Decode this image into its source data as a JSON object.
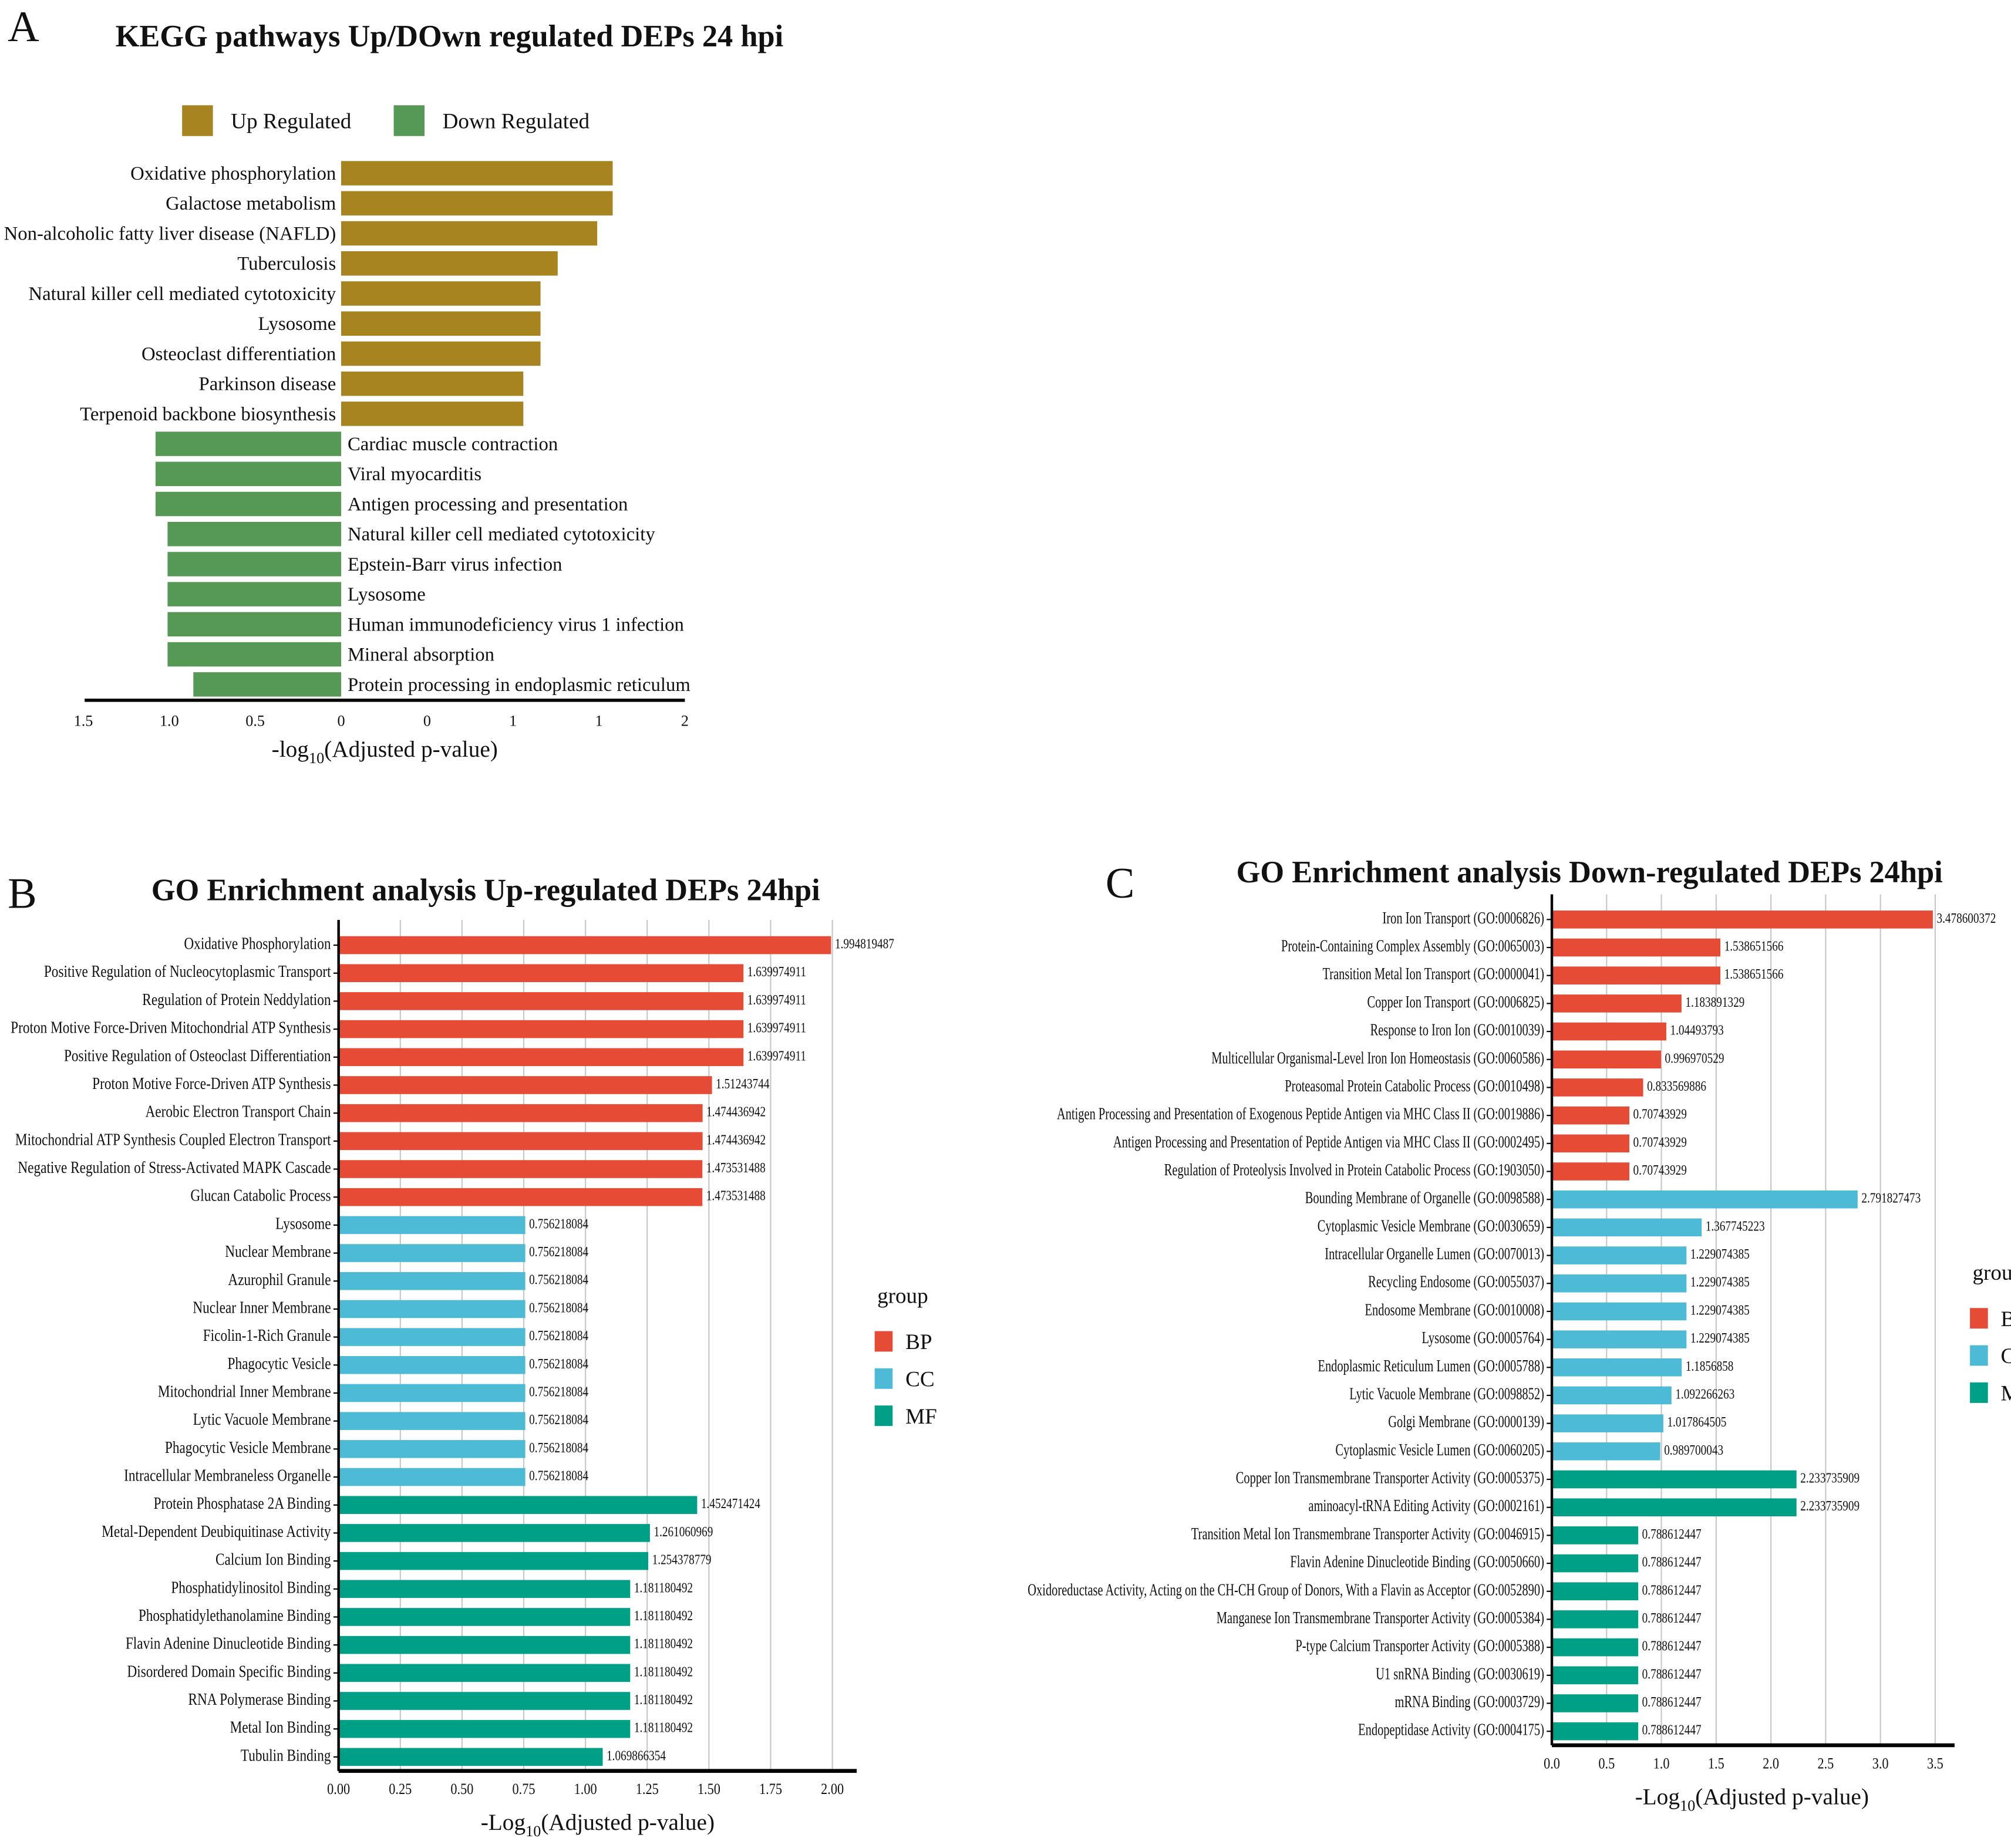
{
  "chart_data": [
    {
      "type": "bar",
      "panel": "A",
      "title": "KEGG pathways Up/DOwn regulated  DEPs  24 hpi",
      "legend": [
        {
          "label": "Up Regulated",
          "color": "#A88420"
        },
        {
          "label": "Down Regulated",
          "color": "#559955"
        }
      ],
      "up": [
        {
          "label": "Oxidative phosphorylation",
          "value": 1.58
        },
        {
          "label": "Galactose metabolism",
          "value": 1.58
        },
        {
          "label": "Non-alcoholic fatty liver disease (NAFLD)",
          "value": 1.49
        },
        {
          "label": "Tuberculosis",
          "value": 1.26
        },
        {
          "label": "Natural killer cell mediated cytotoxicity",
          "value": 1.16
        },
        {
          "label": "Lysosome",
          "value": 1.16
        },
        {
          "label": "Osteoclast differentiation",
          "value": 1.16
        },
        {
          "label": "Parkinson disease",
          "value": 1.06
        },
        {
          "label": "Terpenoid backbone biosynthesis",
          "value": 1.06
        }
      ],
      "down": [
        {
          "label": "Cardiac muscle contraction",
          "value": 1.08
        },
        {
          "label": "Viral myocarditis",
          "value": 1.08
        },
        {
          "label": "Antigen processing and presentation",
          "value": 1.08
        },
        {
          "label": "Natural killer cell mediated cytotoxicity",
          "value": 1.01
        },
        {
          "label": "Epstein-Barr virus infection",
          "value": 1.01
        },
        {
          "label": "Lysosome",
          "value": 1.01
        },
        {
          "label": "Human immunodeficiency virus 1 infection",
          "value": 1.01
        },
        {
          "label": "Mineral absorption",
          "value": 1.01
        },
        {
          "label": "Protein processing in endoplasmic reticulum",
          "value": 0.86
        }
      ],
      "xticks": [
        {
          "label": "1.5",
          "value": -1.5
        },
        {
          "label": "1.0",
          "value": -1.0
        },
        {
          "label": "0.5",
          "value": -0.5
        },
        {
          "label": "0",
          "value": 0
        },
        {
          "label": "0",
          "value": 0.5
        },
        {
          "label": "1",
          "value": 1.0
        },
        {
          "label": "1",
          "value": 1.5
        },
        {
          "label": "2",
          "value": 2.0
        }
      ],
      "xlabel": {
        "pre": "-log",
        "sub": "10",
        "post": "(Adjusted p-value)"
      },
      "xlim": [
        -1.5,
        2
      ]
    },
    {
      "type": "bar",
      "panel": "B",
      "title": "GO Enrichment analysis Up-regulated DEPs 24hpi",
      "legend_title": "group",
      "groups": [
        {
          "name": "BP",
          "color": "#E64B35"
        },
        {
          "name": "CC",
          "color": "#4DBBD5"
        },
        {
          "name": "MF",
          "color": "#00A087"
        }
      ],
      "bars": [
        {
          "label": "Oxidative Phosphorylation",
          "group": "BP",
          "value": "1.994819487"
        },
        {
          "label": "Positive Regulation of Nucleocytoplasmic Transport",
          "group": "BP",
          "value": "1.639974911"
        },
        {
          "label": "Regulation of Protein Neddylation",
          "group": "BP",
          "value": "1.639974911"
        },
        {
          "label": "Proton Motive Force-Driven Mitochondrial ATP Synthesis",
          "group": "BP",
          "value": "1.639974911"
        },
        {
          "label": "Positive Regulation of Osteoclast Differentiation",
          "group": "BP",
          "value": "1.639974911"
        },
        {
          "label": "Proton Motive Force-Driven ATP Synthesis",
          "group": "BP",
          "value": "1.51243744"
        },
        {
          "label": "Aerobic Electron Transport Chain",
          "group": "BP",
          "value": "1.474436942"
        },
        {
          "label": "Mitochondrial ATP Synthesis Coupled Electron Transport",
          "group": "BP",
          "value": "1.474436942"
        },
        {
          "label": "Negative Regulation of Stress-Activated MAPK Cascade",
          "group": "BP",
          "value": "1.473531488"
        },
        {
          "label": "Glucan Catabolic Process",
          "group": "BP",
          "value": "1.473531488"
        },
        {
          "label": "Lysosome",
          "group": "CC",
          "value": "0.756218084"
        },
        {
          "label": "Nuclear Membrane",
          "group": "CC",
          "value": "0.756218084"
        },
        {
          "label": "Azurophil Granule",
          "group": "CC",
          "value": "0.756218084"
        },
        {
          "label": "Nuclear Inner Membrane",
          "group": "CC",
          "value": "0.756218084"
        },
        {
          "label": "Ficolin-1-Rich Granule",
          "group": "CC",
          "value": "0.756218084"
        },
        {
          "label": "Phagocytic Vesicle",
          "group": "CC",
          "value": "0.756218084"
        },
        {
          "label": "Mitochondrial Inner Membrane",
          "group": "CC",
          "value": "0.756218084"
        },
        {
          "label": "Lytic Vacuole Membrane",
          "group": "CC",
          "value": "0.756218084"
        },
        {
          "label": "Phagocytic Vesicle Membrane",
          "group": "CC",
          "value": "0.756218084"
        },
        {
          "label": "Intracellular Membraneless Organelle",
          "group": "CC",
          "value": "0.756218084"
        },
        {
          "label": "Protein Phosphatase 2A Binding",
          "group": "MF",
          "value": "1.452471424"
        },
        {
          "label": "Metal-Dependent Deubiquitinase Activity",
          "group": "MF",
          "value": "1.261060969"
        },
        {
          "label": "Calcium Ion Binding",
          "group": "MF",
          "value": "1.254378779"
        },
        {
          "label": "Phosphatidylinositol Binding",
          "group": "MF",
          "value": "1.181180492"
        },
        {
          "label": "Phosphatidylethanolamine Binding",
          "group": "MF",
          "value": "1.181180492"
        },
        {
          "label": "Flavin Adenine Dinucleotide Binding",
          "group": "MF",
          "value": "1.181180492"
        },
        {
          "label": "Disordered Domain Specific Binding",
          "group": "MF",
          "value": "1.181180492"
        },
        {
          "label": "RNA Polymerase Binding",
          "group": "MF",
          "value": "1.181180492"
        },
        {
          "label": "Metal Ion Binding",
          "group": "MF",
          "value": "1.181180492"
        },
        {
          "label": "Tubulin Binding",
          "group": "MF",
          "value": "1.069866354"
        }
      ],
      "xticks": [
        "0.00",
        "0.25",
        "0.50",
        "0.75",
        "1.00",
        "1.25",
        "1.50",
        "1.75",
        "2.00"
      ],
      "xlabel": {
        "pre": "-Log",
        "sub": "10",
        "post": "(Adjusted p-value)"
      },
      "xlim": [
        0,
        2.1
      ]
    },
    {
      "type": "bar",
      "panel": "C",
      "title": "GO Enrichment analysis Down-regulated DEPs 24hpi",
      "legend_title": "group",
      "groups": [
        {
          "name": "BP",
          "color": "#E64B35"
        },
        {
          "name": "CC",
          "color": "#4DBBD5"
        },
        {
          "name": "MF",
          "color": "#00A087"
        }
      ],
      "bars": [
        {
          "label": "Iron Ion Transport (GO:0006826)",
          "group": "BP",
          "value": "3.478600372"
        },
        {
          "label": "Protein-Containing Complex Assembly (GO:0065003)",
          "group": "BP",
          "value": "1.538651566"
        },
        {
          "label": "Transition Metal Ion Transport (GO:0000041)",
          "group": "BP",
          "value": "1.538651566"
        },
        {
          "label": "Copper Ion Transport (GO:0006825)",
          "group": "BP",
          "value": "1.183891329"
        },
        {
          "label": "Response to Iron Ion (GO:0010039)",
          "group": "BP",
          "value": "1.04493793"
        },
        {
          "label": "Multicellular Organismal-Level Iron Ion Homeostasis (GO:0060586)",
          "group": "BP",
          "value": "0.996970529"
        },
        {
          "label": "Proteasomal Protein Catabolic Process (GO:0010498)",
          "group": "BP",
          "value": "0.833569886"
        },
        {
          "label": "Antigen Processing and Presentation of Exogenous Peptide Antigen via MHC Class II (GO:0019886)",
          "group": "BP",
          "value": "0.70743929"
        },
        {
          "label": "Antigen Processing and Presentation of Peptide Antigen via MHC Class II (GO:0002495)",
          "group": "BP",
          "value": "0.70743929"
        },
        {
          "label": "Regulation of Proteolysis Involved in Protein Catabolic Process (GO:1903050)",
          "group": "BP",
          "value": "0.70743929"
        },
        {
          "label": "Bounding Membrane of Organelle (GO:0098588)",
          "group": "CC",
          "value": "2.791827473"
        },
        {
          "label": "Cytoplasmic Vesicle Membrane (GO:0030659)",
          "group": "CC",
          "value": "1.367745223"
        },
        {
          "label": "Intracellular Organelle Lumen (GO:0070013)",
          "group": "CC",
          "value": "1.229074385"
        },
        {
          "label": "Recycling Endosome (GO:0055037)",
          "group": "CC",
          "value": "1.229074385"
        },
        {
          "label": "Endosome Membrane (GO:0010008)",
          "group": "CC",
          "value": "1.229074385"
        },
        {
          "label": "Lysosome (GO:0005764)",
          "group": "CC",
          "value": "1.229074385"
        },
        {
          "label": "Endoplasmic Reticulum Lumen (GO:0005788)",
          "group": "CC",
          "value": "1.1856858"
        },
        {
          "label": "Lytic Vacuole Membrane (GO:0098852)",
          "group": "CC",
          "value": "1.092266263"
        },
        {
          "label": "Golgi Membrane (GO:0000139)",
          "group": "CC",
          "value": "1.017864505"
        },
        {
          "label": "Cytoplasmic Vesicle Lumen (GO:0060205)",
          "group": "CC",
          "value": "0.989700043"
        },
        {
          "label": "Copper Ion Transmembrane Transporter Activity (GO:0005375)",
          "group": "MF",
          "value": "2.233735909"
        },
        {
          "label": "aminoacyl-tRNA Editing Activity (GO:0002161)",
          "group": "MF",
          "value": "2.233735909"
        },
        {
          "label": "Transition Metal Ion Transmembrane Transporter Activity (GO:0046915)",
          "group": "MF",
          "value": "0.788612447"
        },
        {
          "label": "Flavin Adenine Dinucleotide Binding (GO:0050660)",
          "group": "MF",
          "value": "0.788612447"
        },
        {
          "label": "Oxidoreductase Activity, Acting on the CH-CH Group of Donors, With a Flavin as Acceptor (GO:0052890)",
          "group": "MF",
          "value": "0.788612447"
        },
        {
          "label": "Manganese Ion Transmembrane Transporter Activity (GO:0005384)",
          "group": "MF",
          "value": "0.788612447"
        },
        {
          "label": "P-type Calcium Transporter Activity (GO:0005388)",
          "group": "MF",
          "value": "0.788612447"
        },
        {
          "label": "U1 snRNA Binding (GO:0030619)",
          "group": "MF",
          "value": "0.788612447"
        },
        {
          "label": "mRNA Binding (GO:0003729)",
          "group": "MF",
          "value": "0.788612447"
        },
        {
          "label": "Endopeptidase Activity (GO:0004175)",
          "group": "MF",
          "value": "0.788612447"
        }
      ],
      "xticks": [
        "0.0",
        "0.5",
        "1.0",
        "1.5",
        "2.0",
        "2.5",
        "3.0",
        "3.5"
      ],
      "xlabel": {
        "pre": "-Log",
        "sub": "10",
        "post": "(Adjusted p-value)"
      },
      "xlim": [
        0,
        3.65
      ]
    }
  ]
}
